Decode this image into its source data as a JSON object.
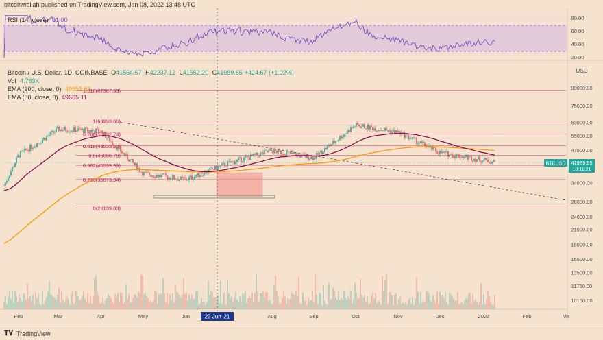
{
  "header": {
    "publisher": "bitcoinwallah published on TradingView.com, Jan 08, 2022 13:48 UTC"
  },
  "rsi": {
    "label": "RSI (14, close)",
    "value": "31.00",
    "levels": [
      70,
      30
    ],
    "axis_ticks": [
      "80.00",
      "60.00",
      "40.00",
      "20.00"
    ]
  },
  "symbol": {
    "line": "Bitcoin / U.S. Dollar, 1D, COINBASE",
    "ohlc": [
      {
        "k": "O",
        "v": "41564.57"
      },
      {
        "k": "H",
        "v": "42237.12"
      },
      {
        "k": "L",
        "v": "41552.20"
      },
      {
        "k": "C",
        "v": "41989.85"
      },
      {
        "k": "",
        "v": "+424.67 (+1.02%)"
      }
    ],
    "vol_label": "Vol",
    "vol_value": "4.763K",
    "ema200_label": "EMA (200, close, 0)",
    "ema200_value": "49351.83",
    "ema50_label": "EMA (50, close, 0)",
    "ema50_value": "49665.11"
  },
  "currency_label": "USD",
  "price_badge": {
    "ticker": "BTCUSD",
    "price": "41989.85",
    "countdown": "10:11:21"
  },
  "date_badge": "23 Jun '21",
  "footer": {
    "brand": "TradingView"
  },
  "colors": {
    "up": "#26a69a",
    "down": "#ef5350",
    "ema200": "#ff9800",
    "ema50": "#880e4f",
    "fib": "#c2185b",
    "rsi": "#7e57c2"
  },
  "chart_data": {
    "type": "candlestick",
    "title": "Bitcoin / U.S. Dollar, 1D, COINBASE",
    "x_labels": [
      "Feb",
      "Mar",
      "Apr",
      "May",
      "Jun",
      "Aug",
      "Sep",
      "Oct",
      "Nov",
      "Dec",
      "2022",
      "Feb",
      "Ma"
    ],
    "y_axis_ticks": [
      90000,
      75000,
      63000,
      55000,
      47500,
      40000,
      34000,
      28000,
      24000,
      21000,
      18000,
      15500,
      13500,
      11750,
      10150
    ],
    "y_scale": "log",
    "fib_levels": [
      {
        "ratio": "1.618",
        "price": "87387.33",
        "value": 87387.33
      },
      {
        "ratio": "1",
        "price": "63993.66",
        "value": 63993.66
      },
      {
        "ratio": "0.786",
        "price": "55892.74",
        "value": 55892.74
      },
      {
        "ratio": "0.618",
        "price": "49533.50",
        "value": 49533.5
      },
      {
        "ratio": "0.5",
        "price": "45066.75",
        "value": 45066.75
      },
      {
        "ratio": "0.382",
        "price": "40599.99",
        "value": 40599.99
      },
      {
        "ratio": "0.236",
        "price": "35073.34",
        "value": 35073.34
      },
      {
        "ratio": "0",
        "price": "26139.83",
        "value": 26139.83
      }
    ],
    "price_path_monthly_closes": [
      {
        "m": "Jan",
        "close": 33000
      },
      {
        "m": "Feb",
        "close": 45000
      },
      {
        "m": "Mar",
        "close": 58800
      },
      {
        "m": "Apr",
        "close": 57700
      },
      {
        "m": "May",
        "close": 37300
      },
      {
        "m": "Jun",
        "close": 35000
      },
      {
        "m": "Jul",
        "close": 41500
      },
      {
        "m": "Aug",
        "close": 47100
      },
      {
        "m": "Sep",
        "close": 43800
      },
      {
        "m": "Oct",
        "close": 61300
      },
      {
        "m": "Nov",
        "close": 57000
      },
      {
        "m": "Dec",
        "close": 46200
      },
      {
        "m": "Jan 8",
        "close": 41989.85
      }
    ],
    "ema200_latest": 49351.83,
    "ema50_latest": 49665.11,
    "rsi_latest": 31.0
  }
}
